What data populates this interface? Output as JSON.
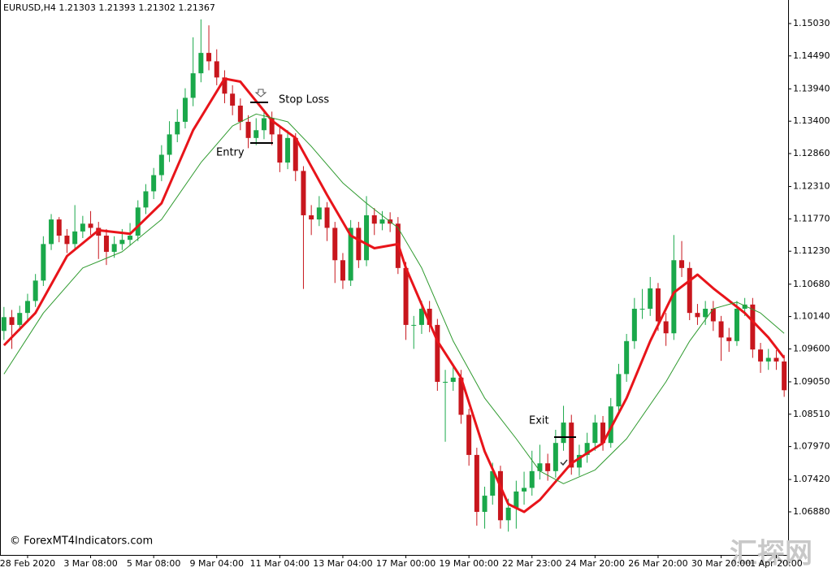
{
  "chart_data": {
    "type": "candlestick",
    "title": "EURUSD,H4  1.21303 1.21393 1.21302 1.21367",
    "up_color": "#1aa84a",
    "down_color": "#c8161d",
    "open": [
      1.099,
      1.1013,
      1.1,
      1.102,
      1.104,
      1.1074,
      1.1135,
      1.1176,
      1.1149,
      1.1135,
      1.1156,
      1.1169,
      1.1162,
      1.1149,
      1.1122,
      1.1135,
      1.1142,
      1.1149,
      1.1196,
      1.1223,
      1.125,
      1.1284,
      1.1318,
      1.1339,
      1.1379,
      1.142,
      1.1454,
      1.144,
      1.1413,
      1.1386,
      1.1366,
      1.1339,
      1.1312,
      1.1325,
      1.1345,
      1.1318,
      1.1271,
      1.1312,
      1.1257,
      1.1183,
      1.1176,
      1.1196,
      1.1162,
      1.1108,
      1.1074,
      1.1162,
      1.1108,
      1.1183,
      1.1169,
      1.1176,
      1.1169,
      1.1095,
      1.1,
      1.1,
      1.1027,
      1.1,
      1.0905,
      1.0905,
      1.0912,
      1.085,
      1.0783,
      1.0688,
      1.0715,
      1.0756,
      1.0674,
      1.0695,
      1.0722,
      1.0728,
      1.0756,
      1.0769,
      1.0756,
      1.0803,
      1.0837,
      1.0762,
      1.0783,
      1.0803,
      1.0837,
      1.0803,
      1.0864,
      1.0918,
      1.0973,
      1.1027,
      1.1027,
      1.1061,
      1.1006,
      1.0986,
      1.1108,
      1.1095,
      1.102,
      1.1013,
      1.1027,
      1.1006,
      1.0979,
      1.0973,
      1.1027,
      1.1034,
      1.0959,
      1.0939,
      1.0945,
      1.0939
    ],
    "high": [
      1.103,
      1.1025,
      1.1032,
      1.1052,
      1.1085,
      1.1148,
      1.1185,
      1.118,
      1.116,
      1.12,
      1.1182,
      1.119,
      1.1172,
      1.116,
      1.1148,
      1.116,
      1.117,
      1.1208,
      1.1235,
      1.1262,
      1.13,
      1.134,
      1.136,
      1.1395,
      1.148,
      1.151,
      1.15,
      1.146,
      1.1425,
      1.14,
      1.1378,
      1.135,
      1.1345,
      1.136,
      1.1356,
      1.133,
      1.1325,
      1.132,
      1.1265,
      1.12,
      1.1215,
      1.1205,
      1.1172,
      1.112,
      1.1175,
      1.1172,
      1.1215,
      1.1195,
      1.119,
      1.1188,
      1.118,
      1.1105,
      1.1015,
      1.104,
      1.104,
      1.101,
      1.0925,
      1.0935,
      1.0925,
      1.086,
      1.0795,
      1.073,
      1.077,
      1.0765,
      1.071,
      1.074,
      1.0755,
      1.079,
      1.08,
      1.0785,
      1.0825,
      1.0865,
      1.085,
      1.08,
      1.082,
      1.085,
      1.0848,
      1.0878,
      1.0935,
      1.0985,
      1.1045,
      1.106,
      1.108,
      1.107,
      1.102,
      1.115,
      1.114,
      1.1105,
      1.1035,
      1.104,
      1.104,
      1.1015,
      1.0995,
      1.104,
      1.1045,
      1.1045,
      1.097,
      1.096,
      1.0958,
      1.095
    ],
    "low": [
      1.0975,
      1.096,
      1.099,
      1.1008,
      1.103,
      1.1065,
      1.1125,
      1.1138,
      1.112,
      1.1125,
      1.1145,
      1.115,
      1.111,
      1.11,
      1.1112,
      1.1125,
      1.1132,
      1.114,
      1.1185,
      1.121,
      1.124,
      1.1272,
      1.1305,
      1.1328,
      1.1365,
      1.1405,
      1.1425,
      1.14,
      1.137,
      1.135,
      1.1325,
      1.1295,
      1.13,
      1.131,
      1.13,
      1.1255,
      1.126,
      1.124,
      1.106,
      1.115,
      1.1165,
      1.114,
      1.107,
      1.106,
      1.1065,
      1.1095,
      1.1098,
      1.115,
      1.1158,
      1.1155,
      1.1085,
      1.0975,
      1.096,
      1.0985,
      1.0988,
      1.089,
      1.0805,
      1.089,
      1.0835,
      1.0765,
      1.0665,
      1.066,
      1.07,
      1.066,
      1.0655,
      1.066,
      1.07,
      1.0715,
      1.0742,
      1.074,
      1.0745,
      1.079,
      1.075,
      1.0748,
      1.077,
      1.079,
      1.079,
      1.0795,
      1.085,
      1.0905,
      1.096,
      1.101,
      1.1015,
      1.099,
      1.0965,
      1.0975,
      1.108,
      1.1008,
      1.1,
      1.1,
      1.099,
      1.094,
      1.0955,
      1.0965,
      1.1015,
      1.0945,
      1.092,
      1.0925,
      1.0925,
      1.088
    ],
    "close": [
      1.1013,
      1.1,
      1.102,
      1.104,
      1.1074,
      1.1135,
      1.1176,
      1.1149,
      1.1135,
      1.1156,
      1.1169,
      1.1162,
      1.1149,
      1.1122,
      1.1135,
      1.1142,
      1.1149,
      1.1196,
      1.1223,
      1.125,
      1.1284,
      1.1318,
      1.1339,
      1.1379,
      1.142,
      1.1454,
      1.144,
      1.1413,
      1.1386,
      1.1366,
      1.1339,
      1.1312,
      1.1325,
      1.1345,
      1.1318,
      1.1271,
      1.1312,
      1.1257,
      1.1183,
      1.1176,
      1.1196,
      1.1162,
      1.1108,
      1.1074,
      1.1162,
      1.1108,
      1.1183,
      1.1169,
      1.1176,
      1.1169,
      1.1095,
      1.1,
      1.1,
      1.1027,
      1.1,
      1.0905,
      1.0905,
      1.0912,
      1.085,
      1.0783,
      1.0688,
      1.0715,
      1.0756,
      1.0674,
      1.0695,
      1.0722,
      1.0728,
      1.0756,
      1.0769,
      1.0756,
      1.0803,
      1.0837,
      1.0762,
      1.0783,
      1.0803,
      1.0837,
      1.0803,
      1.0864,
      1.0918,
      1.0973,
      1.1027,
      1.1027,
      1.1061,
      1.1006,
      1.0986,
      1.1108,
      1.1095,
      1.102,
      1.1013,
      1.1027,
      1.1006,
      1.0979,
      1.0973,
      1.1027,
      1.1034,
      1.0959,
      1.0939,
      1.0945,
      1.0939,
      1.0891
    ],
    "lines": [
      {
        "color": "#e8141a",
        "width": 3,
        "x": [
          0,
          4,
          8,
          12,
          16,
          20,
          24,
          28,
          30,
          34,
          37,
          41,
          44,
          47,
          50,
          51,
          55,
          58,
          61,
          64,
          66,
          68,
          72,
          76,
          79,
          82,
          85,
          88,
          90,
          94,
          97,
          99
        ],
        "values": [
          1.0966,
          1.102,
          1.1115,
          1.1158,
          1.1152,
          1.1203,
          1.1325,
          1.1411,
          1.1406,
          1.1341,
          1.1312,
          1.1217,
          1.1149,
          1.1128,
          1.1135,
          1.1095,
          1.0973,
          1.0912,
          1.0789,
          1.0701,
          1.0688,
          1.0708,
          1.0769,
          1.0803,
          1.0878,
          1.0973,
          1.1054,
          1.1084,
          1.1061,
          1.102,
          1.0979,
          1.0945
        ]
      },
      {
        "color": "#2e9a2e",
        "width": 1,
        "x": [
          0,
          5,
          10,
          15,
          20,
          25,
          29,
          32,
          36,
          39,
          43,
          46,
          50,
          53,
          57,
          61,
          65,
          68,
          71,
          75,
          79,
          84,
          87,
          90,
          93,
          96,
          99
        ],
        "values": [
          1.0918,
          1.102,
          1.1095,
          1.1122,
          1.1176,
          1.1271,
          1.1332,
          1.1352,
          1.1339,
          1.1298,
          1.1237,
          1.1203,
          1.1162,
          1.1095,
          1.0973,
          1.0878,
          1.081,
          1.0756,
          1.0735,
          1.0758,
          1.081,
          1.0905,
          1.0973,
          1.1027,
          1.1038,
          1.102,
          1.0986
        ]
      }
    ],
    "xlim": [
      -0.5,
      99.5
    ],
    "ylim": [
      1.06161,
      1.15423
    ],
    "yticks": [
      {
        "value": 1.1503,
        "label": "1.15030"
      },
      {
        "value": 1.1449,
        "label": "1.14490"
      },
      {
        "value": 1.1394,
        "label": "1.13940"
      },
      {
        "value": 1.134,
        "label": "1.13400"
      },
      {
        "value": 1.1286,
        "label": "1.12860"
      },
      {
        "value": 1.1231,
        "label": "1.12310"
      },
      {
        "value": 1.1177,
        "label": "1.11770"
      },
      {
        "value": 1.1123,
        "label": "1.11230"
      },
      {
        "value": 1.1068,
        "label": "1.10680"
      },
      {
        "value": 1.1014,
        "label": "1.10140"
      },
      {
        "value": 1.096,
        "label": "1.09600"
      },
      {
        "value": 1.0905,
        "label": "1.09050"
      },
      {
        "value": 1.0851,
        "label": "1.08510"
      },
      {
        "value": 1.0797,
        "label": "1.07970"
      },
      {
        "value": 1.0742,
        "label": "1.07420"
      },
      {
        "value": 1.0688,
        "label": "1.06880"
      }
    ],
    "xticks": [
      {
        "value": 3,
        "label": "28 Feb 2020"
      },
      {
        "value": 11,
        "label": "3 Mar 08:00"
      },
      {
        "value": 19,
        "label": "5 Mar 08:00"
      },
      {
        "value": 27,
        "label": "9 Mar 04:00"
      },
      {
        "value": 35,
        "label": "11 Mar 04:00"
      },
      {
        "value": 43,
        "label": "13 Mar 04:00"
      },
      {
        "value": 51,
        "label": "17 Mar 00:00"
      },
      {
        "value": 59,
        "label": "19 Mar 00:00"
      },
      {
        "value": 67,
        "label": "22 Mar 23:00"
      },
      {
        "value": 75,
        "label": "24 Mar 20:00"
      },
      {
        "value": 83,
        "label": "26 Mar 20:00"
      },
      {
        "value": 91,
        "label": "30 Mar 20:00"
      },
      {
        "value": 98,
        "label": "1 Apr 20:00"
      }
    ],
    "annotations": [
      "Stop Loss",
      "Entry",
      "Exit"
    ],
    "watermark": "© ForexMT4Indicators.com",
    "watermark_cn": "汇探网"
  }
}
